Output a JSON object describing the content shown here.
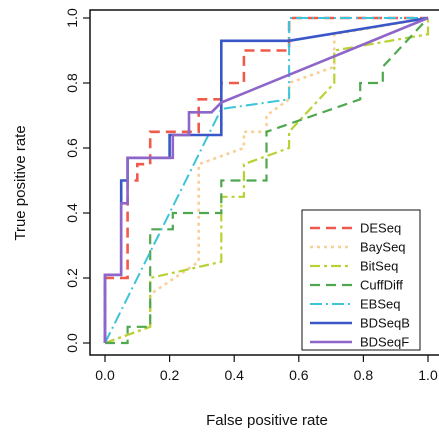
{
  "chart_data": {
    "type": "line",
    "title": "",
    "xlabel": "False positive rate",
    "ylabel": "True positive rate",
    "xlim": [
      0,
      1
    ],
    "ylim": [
      0,
      1
    ],
    "x_ticks": [
      "0.0",
      "0.2",
      "0.4",
      "0.6",
      "0.8",
      "1.0"
    ],
    "y_ticks": [
      "0.0",
      "0.2",
      "0.4",
      "0.6",
      "0.8",
      "1.0"
    ],
    "grid": false,
    "legend_position": "bottom-right",
    "series": [
      {
        "name": "DESeq",
        "color": "#f05a4a",
        "dash": "10,6",
        "width": 2.6,
        "x": [
          0,
          0,
          0.07,
          0.07,
          0.1,
          0.1,
          0.14,
          0.14,
          0.29,
          0.29,
          0.36,
          0.36,
          0.43,
          0.43,
          0.5,
          0.5,
          0.57,
          0.57,
          1.0
        ],
        "y": [
          0,
          0.2,
          0.2,
          0.5,
          0.5,
          0.55,
          0.55,
          0.65,
          0.65,
          0.75,
          0.75,
          0.8,
          0.8,
          0.9,
          0.9,
          0.9,
          0.9,
          1.0,
          1.0
        ]
      },
      {
        "name": "BaySeq",
        "color": "#f8cf96",
        "dash": "3,4",
        "width": 2.6,
        "x": [
          0,
          0.14,
          0.14,
          0.29,
          0.29,
          0.43,
          0.43,
          0.5,
          0.5,
          0.57,
          0.57,
          0.71,
          0.71,
          1.0
        ],
        "y": [
          0,
          0.05,
          0.15,
          0.25,
          0.55,
          0.6,
          0.65,
          0.65,
          0.7,
          0.75,
          0.8,
          0.85,
          0.95,
          1.0
        ]
      },
      {
        "name": "BitSeq",
        "color": "#b8d234",
        "dash": "10,4,3,4",
        "width": 2.2,
        "x": [
          0,
          0.14,
          0.14,
          0.36,
          0.36,
          0.43,
          0.43,
          0.57,
          0.57,
          0.71,
          0.71,
          1.0,
          1.0
        ],
        "y": [
          0,
          0.05,
          0.2,
          0.25,
          0.45,
          0.45,
          0.55,
          0.6,
          0.65,
          0.8,
          0.9,
          0.95,
          1.0
        ]
      },
      {
        "name": "CuffDiff",
        "color": "#4fa84f",
        "dash": "10,6",
        "width": 2.2,
        "x": [
          0,
          0.07,
          0.07,
          0.14,
          0.14,
          0.21,
          0.21,
          0.36,
          0.36,
          0.5,
          0.5,
          0.79,
          0.79,
          0.86,
          0.86,
          1.0
        ],
        "y": [
          0,
          0,
          0.05,
          0.05,
          0.35,
          0.35,
          0.4,
          0.4,
          0.5,
          0.5,
          0.65,
          0.75,
          0.8,
          0.8,
          0.85,
          1.0
        ]
      },
      {
        "name": "EBSeq",
        "color": "#3cc4d8",
        "dash": "12,4,2,4",
        "width": 2.0,
        "x": [
          0,
          0.36,
          0.57,
          0.57,
          0.71,
          0.71,
          1.0
        ],
        "y": [
          0,
          0.72,
          0.75,
          1.0,
          1.0,
          1.0,
          1.0
        ]
      },
      {
        "name": "BDSeqB",
        "color": "#3a57c8",
        "dash": "",
        "width": 2.6,
        "x": [
          0,
          0,
          0.05,
          0.05,
          0.07,
          0.07,
          0.1,
          0.1,
          0.2,
          0.2,
          0.26,
          0.26,
          0.36,
          0.36,
          0.47,
          0.57,
          0.57,
          1.0
        ],
        "y": [
          0,
          0.21,
          0.21,
          0.5,
          0.5,
          0.57,
          0.57,
          0.57,
          0.57,
          0.64,
          0.64,
          0.64,
          0.64,
          0.93,
          0.93,
          0.93,
          0.93,
          1.0
        ]
      },
      {
        "name": "BDSeqF",
        "color": "#8e66c9",
        "dash": "",
        "width": 2.6,
        "x": [
          0,
          0,
          0.05,
          0.05,
          0.07,
          0.07,
          0.21,
          0.21,
          0.26,
          0.26,
          0.33,
          0.36,
          1.0
        ],
        "y": [
          0,
          0.21,
          0.21,
          0.43,
          0.43,
          0.57,
          0.57,
          0.64,
          0.64,
          0.71,
          0.71,
          0.74,
          1.0
        ]
      }
    ]
  }
}
